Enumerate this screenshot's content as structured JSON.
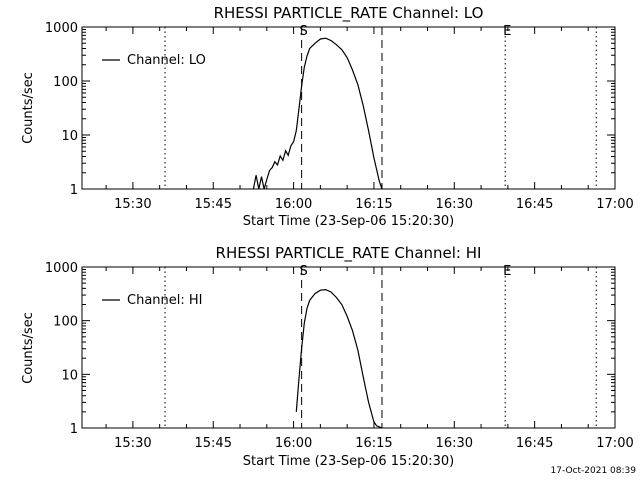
{
  "timestamp": "17-Oct-2021 08:39",
  "chart_data": [
    {
      "type": "line",
      "title": "RHESSI PARTICLE_RATE Channel: LO",
      "xlabel": "Start Time (23-Sep-06 15:20:30)",
      "ylabel": "Counts/sec",
      "y_scale": "log",
      "ylim": [
        1,
        1000
      ],
      "xlim": [
        "15:20:30",
        "17:00:00"
      ],
      "xticks": [
        "15:30",
        "15:45",
        "16:00",
        "16:15",
        "16:30",
        "16:45",
        "17:00"
      ],
      "yticks": [
        "1",
        "10",
        "100",
        "1000"
      ],
      "legend": "top-left",
      "markers": [
        {
          "label": "",
          "time": "15:36:00",
          "style": "dotted"
        },
        {
          "label": "S",
          "time": "16:01:30",
          "style": "dashed"
        },
        {
          "label": "",
          "time": "16:16:30",
          "style": "dashed"
        },
        {
          "label": "E",
          "time": "16:39:30",
          "style": "dotted"
        },
        {
          "label": "",
          "time": "16:56:30",
          "style": "dotted"
        }
      ],
      "series": [
        {
          "name": "Channel: LO",
          "color": "#000000",
          "x": [
            "15:52:30",
            "15:53:00",
            "15:53:30",
            "15:54:00",
            "15:54:30",
            "15:55:00",
            "15:55:30",
            "15:56:00",
            "15:56:30",
            "15:57:00",
            "15:57:30",
            "15:58:00",
            "15:58:30",
            "15:59:00",
            "15:59:30",
            "16:00:00",
            "16:00:30",
            "16:01:00",
            "16:01:30",
            "16:02:00",
            "16:02:30",
            "16:03:00",
            "16:04:00",
            "16:05:00",
            "16:06:00",
            "16:07:00",
            "16:08:00",
            "16:09:00",
            "16:10:00",
            "16:11:00",
            "16:12:00",
            "16:13:00",
            "16:14:00",
            "16:15:00",
            "16:16:00",
            "16:16:30"
          ],
          "y": [
            1,
            1.8,
            1,
            1.7,
            1,
            1.5,
            2.2,
            2.5,
            3.2,
            2.8,
            4.1,
            3.4,
            5.1,
            4.2,
            6.3,
            7.5,
            12,
            30,
            80,
            180,
            290,
            400,
            500,
            600,
            620,
            560,
            470,
            380,
            270,
            160,
            85,
            35,
            12,
            3.8,
            1.4,
            1
          ]
        }
      ]
    },
    {
      "type": "line",
      "title": "RHESSI PARTICLE_RATE Channel: HI",
      "xlabel": "Start Time (23-Sep-06 15:20:30)",
      "ylabel": "Counts/sec",
      "y_scale": "log",
      "ylim": [
        1,
        1000
      ],
      "xlim": [
        "15:20:30",
        "17:00:00"
      ],
      "xticks": [
        "15:30",
        "15:45",
        "16:00",
        "16:15",
        "16:30",
        "16:45",
        "17:00"
      ],
      "yticks": [
        "1",
        "10",
        "100",
        "1000"
      ],
      "legend": "top-left",
      "markers": [
        {
          "label": "",
          "time": "15:36:00",
          "style": "dotted"
        },
        {
          "label": "S",
          "time": "16:01:30",
          "style": "dashed"
        },
        {
          "label": "",
          "time": "16:16:30",
          "style": "dashed"
        },
        {
          "label": "E",
          "time": "16:39:30",
          "style": "dotted"
        },
        {
          "label": "",
          "time": "16:56:30",
          "style": "dotted"
        }
      ],
      "series": [
        {
          "name": "Channel: HI",
          "color": "#000000",
          "x": [
            "16:00:30",
            "16:01:00",
            "16:01:30",
            "16:02:00",
            "16:02:30",
            "16:03:00",
            "16:04:00",
            "16:05:00",
            "16:06:00",
            "16:07:00",
            "16:08:00",
            "16:09:00",
            "16:10:00",
            "16:11:00",
            "16:12:00",
            "16:13:00",
            "16:14:00",
            "16:15:00",
            "16:15:30",
            "16:16:00",
            "16:16:30"
          ],
          "y": [
            2,
            8,
            30,
            90,
            170,
            240,
            320,
            370,
            380,
            340,
            270,
            200,
            120,
            65,
            28,
            9,
            3,
            1.3,
            1.1,
            1.05,
            1
          ]
        }
      ]
    }
  ]
}
